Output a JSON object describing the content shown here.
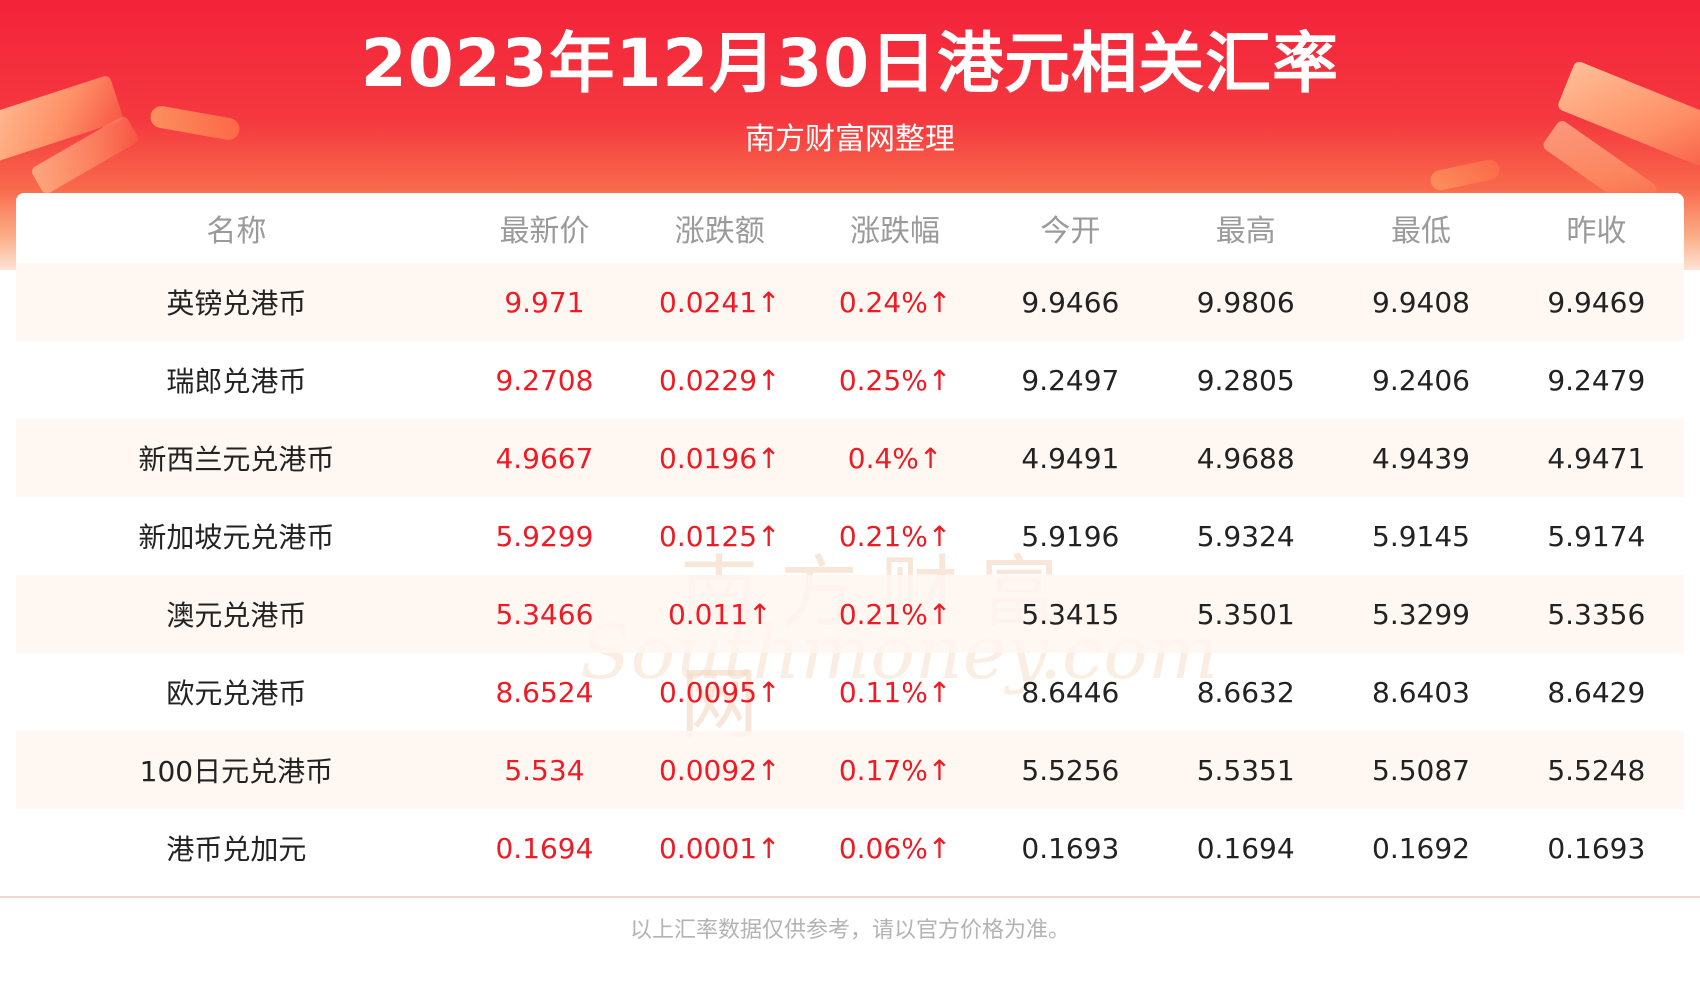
{
  "header": {
    "title": "2023年12月30日港元相关汇率",
    "subtitle": "南方财富网整理"
  },
  "table": {
    "columns": [
      "名称",
      "最新价",
      "涨跌额",
      "涨跌幅",
      "今开",
      "最高",
      "最低",
      "昨收"
    ],
    "rows": [
      [
        "英镑兑港币",
        "9.971",
        "0.0241↑",
        "0.24%↑",
        "9.9466",
        "9.9806",
        "9.9408",
        "9.9469"
      ],
      [
        "瑞郎兑港币",
        "9.2708",
        "0.0229↑",
        "0.25%↑",
        "9.2497",
        "9.2805",
        "9.2406",
        "9.2479"
      ],
      [
        "新西兰元兑港币",
        "4.9667",
        "0.0196↑",
        "0.4%↑",
        "4.9491",
        "4.9688",
        "4.9439",
        "4.9471"
      ],
      [
        "新加坡元兑港币",
        "5.9299",
        "0.0125↑",
        "0.21%↑",
        "5.9196",
        "5.9324",
        "5.9145",
        "5.9174"
      ],
      [
        "澳元兑港币",
        "5.3466",
        "0.011↑",
        "0.21%↑",
        "5.3415",
        "5.3501",
        "5.3299",
        "5.3356"
      ],
      [
        "欧元兑港币",
        "8.6524",
        "0.0095↑",
        "0.11%↑",
        "8.6446",
        "8.6632",
        "8.6403",
        "8.6429"
      ],
      [
        "100日元兑港币",
        "5.534",
        "0.0092↑",
        "0.17%↑",
        "5.5256",
        "5.5351",
        "5.5087",
        "5.5248"
      ],
      [
        "港币兑加元",
        "0.1694",
        "0.0001↑",
        "0.06%↑",
        "0.1693",
        "0.1694",
        "0.1692",
        "0.1693"
      ]
    ]
  },
  "watermark": {
    "cn": "南方财富网",
    "en": "Southmoney.com"
  },
  "footer": {
    "note": "以上汇率数据仅供参考，请以官方价格为准。"
  },
  "colors": {
    "banner_red": "#f3233a",
    "up_red": "#ee1b24",
    "row_tint": "#fff6f0",
    "header_grey": "#9a9a9a"
  }
}
